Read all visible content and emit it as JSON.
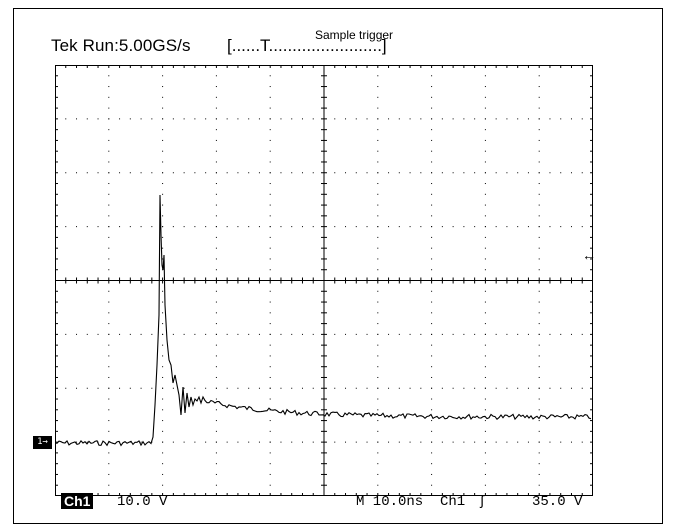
{
  "header": {
    "run_label": "Tek Run:5.00GS/s",
    "bracket_open": "[......T........................]",
    "bracket_close": "",
    "trigger_label": "Sample trigger"
  },
  "markers": {
    "channel_marker": "1→",
    "trigger_level_glyph": "←"
  },
  "readouts": {
    "channel_badge": "Ch1",
    "volts_per_div": "10.0 V",
    "timebase": "M 10.0ns",
    "trigger_source": "Ch1",
    "trigger_slope": "ʃ",
    "trigger_level": "35.0 V"
  },
  "colors": {
    "trace": "#000000",
    "grid": "#000000",
    "background": "#ffffff"
  }
}
